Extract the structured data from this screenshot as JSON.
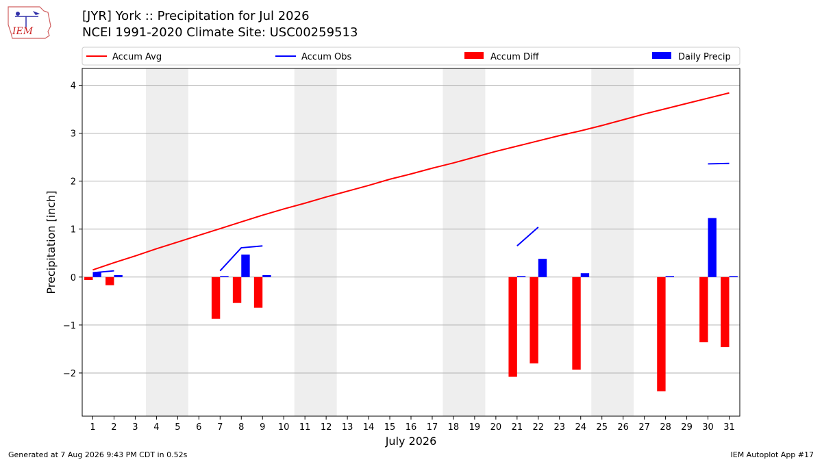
{
  "header": {
    "title": "[JYR] York :: Precipitation for Jul 2026",
    "subtitle": "NCEI 1991-2020 Climate Site: USC00259513"
  },
  "logo": {
    "text": "IEM"
  },
  "footer": {
    "generated": "Generated at 7 Aug 2026 9:43 PM CDT in 0.52s",
    "app": "IEM Autoplot App #17"
  },
  "chart_data": {
    "type": "bar",
    "xlabel": "July 2026",
    "ylabel": "Precipitation [inch]",
    "xlim": [
      0.5,
      31.5
    ],
    "ylim": [
      -2.9,
      4.35
    ],
    "yticks": [
      -2,
      -1,
      0,
      1,
      2,
      3,
      4
    ],
    "ytick_labels": [
      "−2",
      "−1",
      "0",
      "1",
      "2",
      "3",
      "4"
    ],
    "xticks": [
      1,
      2,
      3,
      4,
      5,
      6,
      7,
      8,
      9,
      10,
      11,
      12,
      13,
      14,
      15,
      16,
      17,
      18,
      19,
      20,
      21,
      22,
      23,
      24,
      25,
      26,
      27,
      28,
      29,
      30,
      31
    ],
    "grid": true,
    "legend_placement": "top",
    "weekend_shading": [
      [
        4,
        5
      ],
      [
        11,
        12
      ],
      [
        18,
        19
      ],
      [
        25,
        26
      ]
    ],
    "legend": [
      {
        "label": "Accum Avg",
        "kind": "line",
        "color": "#ff0000"
      },
      {
        "label": "Accum Obs",
        "kind": "line",
        "color": "#0000ff"
      },
      {
        "label": "Accum Diff",
        "kind": "bar",
        "color": "#ff0000"
      },
      {
        "label": "Daily Precip",
        "kind": "bar",
        "color": "#0000ff"
      }
    ],
    "accum_avg": {
      "name": "Accum Avg",
      "color": "#ff0000",
      "x": [
        1,
        2,
        3,
        4,
        5,
        6,
        7,
        8,
        9,
        10,
        11,
        12,
        13,
        14,
        15,
        16,
        17,
        18,
        19,
        20,
        21,
        22,
        23,
        24,
        25,
        26,
        27,
        28,
        29,
        30,
        31
      ],
      "y": [
        0.15,
        0.3,
        0.44,
        0.59,
        0.73,
        0.87,
        1.01,
        1.15,
        1.29,
        1.42,
        1.54,
        1.67,
        1.79,
        1.91,
        2.04,
        2.15,
        2.27,
        2.38,
        2.5,
        2.62,
        2.73,
        2.84,
        2.95,
        3.05,
        3.16,
        3.28,
        3.4,
        3.51,
        3.62,
        3.73,
        3.84
      ]
    },
    "accum_obs": {
      "name": "Accum Obs",
      "color": "#0000ff",
      "segments": [
        {
          "x": [
            1,
            2
          ],
          "y": [
            0.09,
            0.13
          ]
        },
        {
          "x": [
            7,
            8,
            9
          ],
          "y": [
            0.13,
            0.61,
            0.65
          ]
        },
        {
          "x": [
            21,
            22
          ],
          "y": [
            0.65,
            1.04
          ]
        },
        {
          "x": [
            30,
            31
          ],
          "y": [
            2.36,
            2.37
          ]
        }
      ]
    },
    "accum_diff": {
      "name": "Accum Diff",
      "color": "#ff0000",
      "x": [
        1,
        2,
        7,
        8,
        9,
        21,
        22,
        24,
        28,
        30,
        31
      ],
      "values": [
        -0.06,
        -0.17,
        -0.87,
        -0.54,
        -0.64,
        -2.08,
        -1.8,
        -1.93,
        -2.38,
        -1.36,
        -1.46
      ]
    },
    "daily_precip": {
      "name": "Daily Precip",
      "color": "#0000ff",
      "x": [
        1,
        2,
        7,
        8,
        9,
        21,
        22,
        24,
        28,
        30,
        31
      ],
      "values": [
        0.1,
        0.04,
        0.02,
        0.47,
        0.04,
        0.02,
        0.38,
        0.08,
        0.02,
        1.23,
        0.02
      ]
    }
  }
}
